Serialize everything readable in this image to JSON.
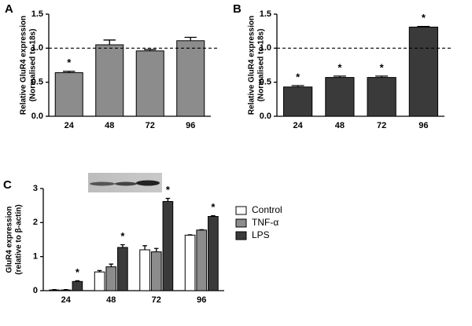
{
  "chart_data": [
    {
      "type": "bar",
      "panel": "A",
      "ylabel": [
        "Relative GluR4 expression",
        "(Normalised to 18s)"
      ],
      "categories": [
        "24",
        "48",
        "72",
        "96"
      ],
      "values": [
        0.64,
        1.05,
        0.96,
        1.11
      ],
      "errors": [
        0.02,
        0.07,
        0.02,
        0.05
      ],
      "significance": [
        "*",
        null,
        null,
        null
      ],
      "color": "#8c8c8c",
      "reference_line": 1,
      "ylim": [
        0,
        1.5
      ],
      "yticks": [
        {
          "value": 0,
          "label": "0.0"
        },
        0.5,
        {
          "value": 1,
          "label": "1.0"
        },
        1.5
      ]
    },
    {
      "type": "bar",
      "panel": "B",
      "ylabel": [
        "Relative GluR4 expression",
        "(Normalised to 18s)"
      ],
      "categories": [
        "24",
        "48",
        "72",
        "96"
      ],
      "values": [
        0.43,
        0.57,
        0.57,
        1.31
      ],
      "errors": [
        0.02,
        0.02,
        0.02,
        0.01
      ],
      "significance": [
        "*",
        "*",
        "*",
        "*"
      ],
      "color": "#3a3a3a",
      "reference_line": 1,
      "ylim": [
        0,
        1.5
      ],
      "yticks": [
        {
          "value": 0,
          "label": "0.0"
        },
        0.5,
        {
          "value": 1,
          "label": "1.0"
        },
        1.5
      ]
    },
    {
      "type": "grouped_bar",
      "panel": "C",
      "ylabel": [
        "GluR4 expression",
        "(relative to β-actin)"
      ],
      "categories": [
        "24",
        "48",
        "72",
        "96"
      ],
      "series": [
        {
          "name": "Control",
          "color": "#ffffff",
          "values": [
            0.02,
            0.55,
            1.2,
            1.63
          ],
          "errors": [
            0.01,
            0.04,
            0.12,
            0.01
          ],
          "significance": [
            null,
            null,
            null,
            null
          ]
        },
        {
          "name": "TNF-α",
          "color": "#8c8c8c",
          "values": [
            0.02,
            0.7,
            1.14,
            1.78
          ],
          "errors": [
            0.01,
            0.08,
            0.1,
            0.01
          ],
          "significance": [
            null,
            null,
            null,
            null
          ]
        },
        {
          "name": "LPS",
          "color": "#3a3a3a",
          "values": [
            0.27,
            1.27,
            2.62,
            2.18
          ],
          "errors": [
            0.02,
            0.08,
            0.09,
            0.02
          ],
          "significance": [
            "*",
            "*",
            "*",
            "*"
          ]
        }
      ],
      "ylim": [
        0,
        3
      ],
      "yticks": [
        0,
        1,
        2,
        3
      ]
    }
  ]
}
